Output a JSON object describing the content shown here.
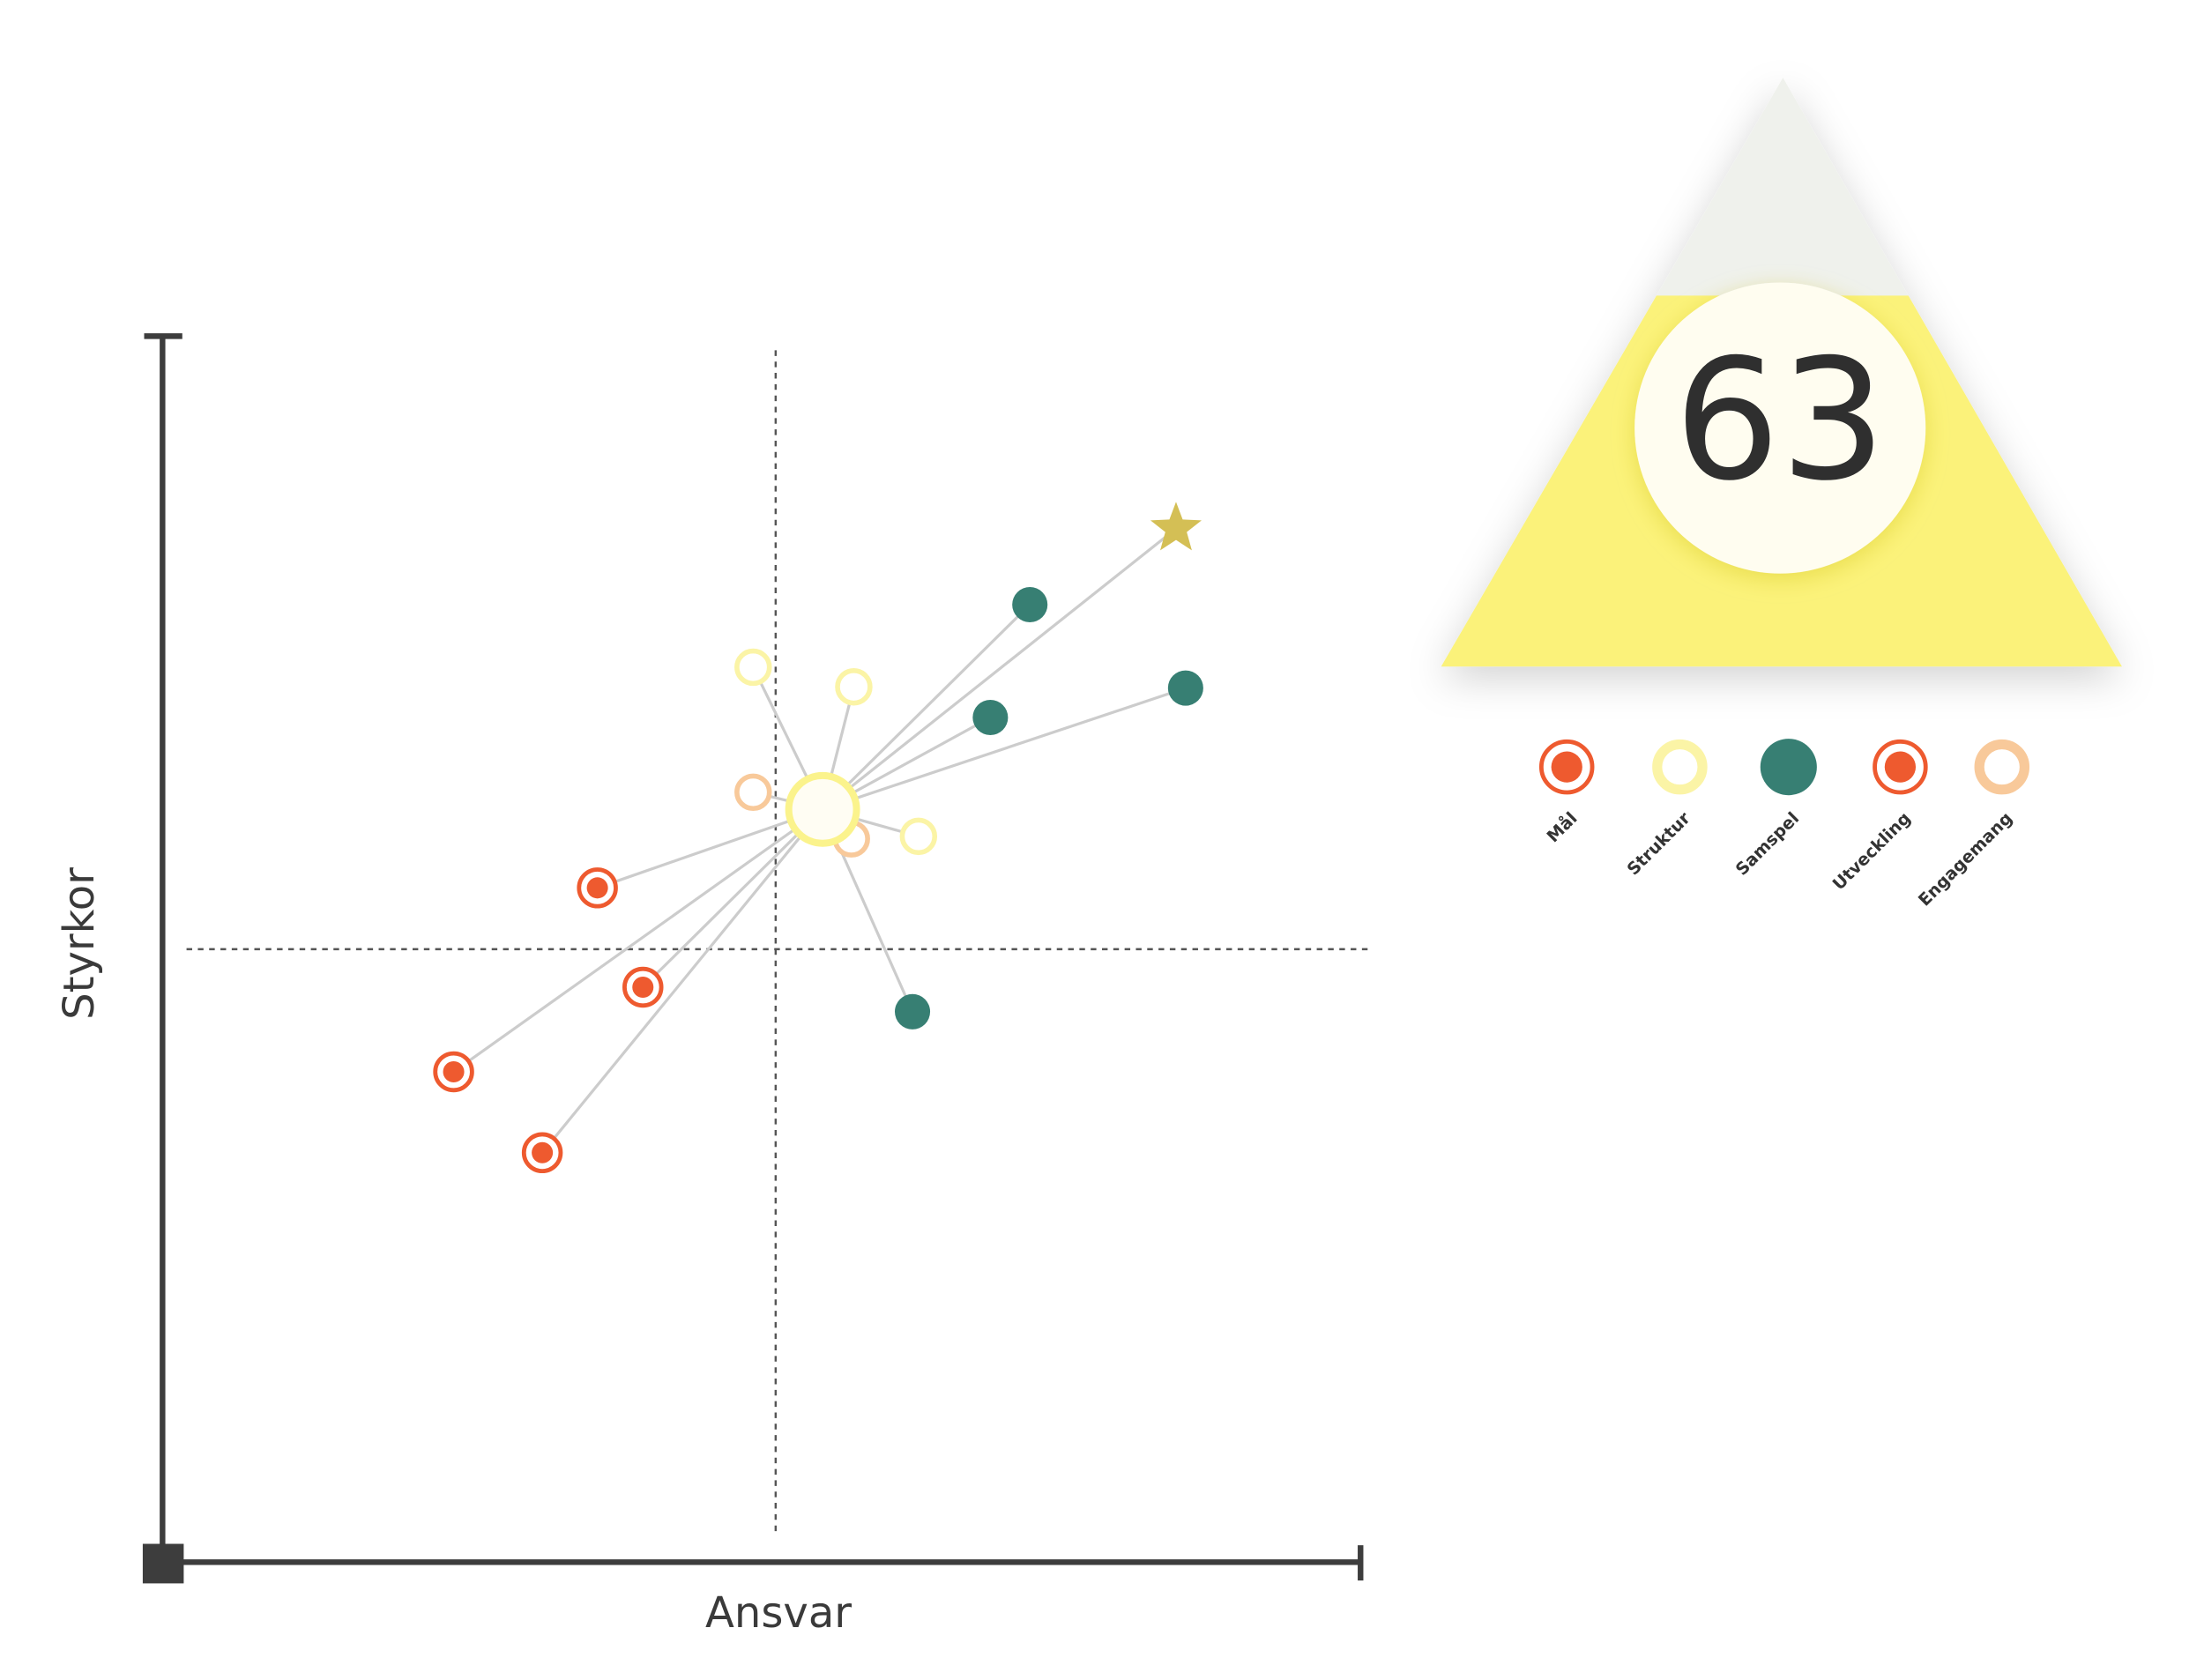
{
  "chart_data": {
    "type": "scatter",
    "x_label": "Ansvar",
    "y_label": "Styrkor",
    "xlim": [
      0,
      100
    ],
    "ylim": [
      0,
      100
    ],
    "center": {
      "x": 55.1,
      "y": 61.4,
      "color": "#fbf38c"
    },
    "target": {
      "x": 84.6,
      "y": 84.3,
      "color": "#d4bf55"
    },
    "series": [
      {
        "name": "Mål",
        "color": "#ee5a2f",
        "marker": "target",
        "x": [
          36.3,
          40.1
        ],
        "values": [
          55.0,
          46.9
        ]
      },
      {
        "name": "Struktur",
        "color": "#fbf4a6",
        "marker": "ring",
        "x": [
          49.3,
          57.7,
          63.1
        ],
        "values": [
          73.0,
          71.4,
          59.2
        ]
      },
      {
        "name": "Samspel",
        "color": "#377f73",
        "marker": "dot",
        "x": [
          72.4,
          69.1,
          85.4,
          62.6
        ],
        "values": [
          78.1,
          68.9,
          71.3,
          44.9
        ]
      },
      {
        "name": "Utveckling",
        "color": "#ee5a2f",
        "marker": "target",
        "x": [
          24.3,
          31.7
        ],
        "values": [
          40.0,
          33.4
        ]
      },
      {
        "name": "Engagemang",
        "color": "#f8c99a",
        "marker": "ring",
        "x": [
          49.3,
          57.5
        ],
        "values": [
          62.8,
          59.0
        ]
      }
    ]
  },
  "score": {
    "value": 63,
    "color": "#fbf27a"
  }
}
